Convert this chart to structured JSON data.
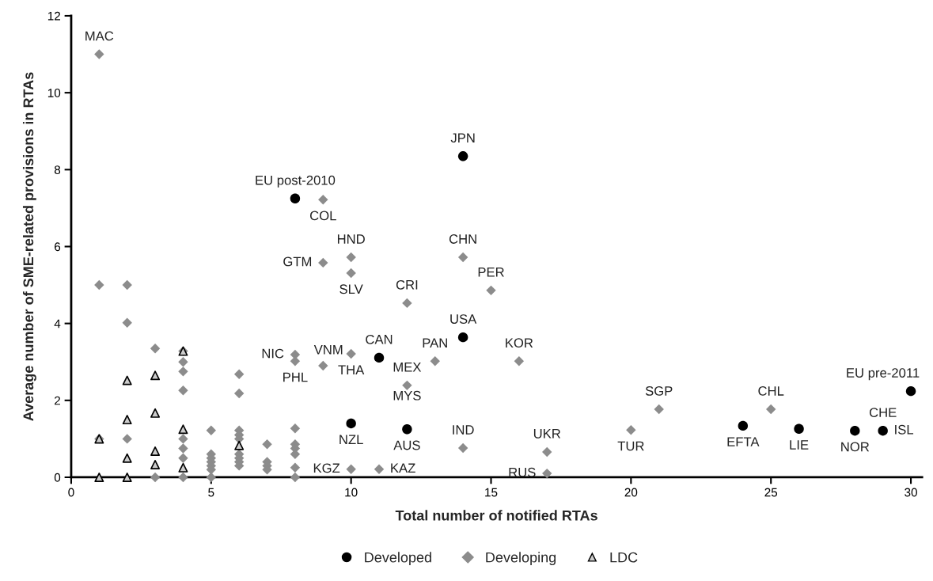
{
  "chart_data": {
    "type": "scatter",
    "xlabel": "Total number of notified RTAs",
    "ylabel": "Average number of SME-related provisions in RTAs",
    "xlim": [
      0,
      30.4
    ],
    "xticks": [
      0,
      5,
      10,
      15,
      20,
      25,
      30
    ],
    "ylim": [
      0,
      12
    ],
    "yticks": [
      0,
      2,
      4,
      6,
      8,
      10,
      12
    ],
    "grid": false,
    "legend": "bottom",
    "series": [
      {
        "name": "Developed",
        "color": "#000000",
        "marker": "circle",
        "x": [
          8,
          14,
          14,
          11,
          10,
          12,
          24,
          26,
          28,
          29,
          30
        ],
        "values": [
          7.25,
          8.35,
          3.64,
          3.11,
          1.4,
          1.25,
          1.34,
          1.26,
          1.21,
          1.21,
          2.24
        ]
      },
      {
        "name": "Developing",
        "color": "#8c8c8c",
        "marker": "diamond",
        "x": [
          1,
          9,
          9,
          10,
          10,
          14,
          15,
          12,
          10,
          8,
          8,
          9,
          13,
          16,
          12,
          14,
          17,
          17,
          10,
          11,
          21,
          20,
          25,
          1,
          1,
          2,
          2,
          2,
          3,
          3,
          4,
          4,
          4,
          4,
          4,
          4,
          4,
          4,
          5,
          5,
          5,
          5,
          5,
          5,
          5,
          6,
          6,
          6,
          6,
          6,
          6,
          6,
          6,
          6,
          7,
          7,
          7,
          7,
          8,
          8,
          8,
          8,
          8,
          8
        ],
        "values": [
          11.0,
          7.22,
          5.58,
          5.72,
          5.31,
          5.72,
          4.86,
          4.53,
          3.21,
          3.19,
          3.02,
          2.9,
          3.02,
          3.02,
          2.39,
          0.76,
          0.66,
          0.1,
          0.21,
          0.21,
          1.77,
          1.23,
          1.77,
          5.0,
          1.0,
          5.0,
          4.02,
          1.0,
          3.35,
          0,
          3.28,
          3.0,
          2.75,
          2.26,
          1.0,
          0.75,
          0.5,
          0,
          1.22,
          0.6,
          0.5,
          0.4,
          0.3,
          0.2,
          0,
          2.68,
          2.18,
          1.22,
          1.1,
          1.0,
          0.6,
          0.5,
          0.4,
          0.3,
          0.86,
          0.4,
          0.3,
          0.2,
          1.27,
          0.86,
          0.75,
          0.6,
          0.25,
          0
        ]
      },
      {
        "name": "LDC",
        "color": "#cccccc",
        "marker": "triangle",
        "x": [
          1,
          1,
          2,
          2,
          2,
          2,
          3,
          3,
          3,
          3,
          4,
          4,
          4,
          6
        ],
        "values": [
          1.0,
          0,
          2.52,
          1.5,
          0.5,
          0,
          2.65,
          1.67,
          0.68,
          0.33,
          3.28,
          1.25,
          0.25,
          0.83
        ]
      }
    ],
    "annotations": [
      {
        "text": "MAC",
        "x": 1,
        "y": 11.0
      },
      {
        "text": "EU post-2010",
        "x": 8,
        "y": 7.25
      },
      {
        "text": "COL",
        "x": 9,
        "y": 7.22
      },
      {
        "text": "JPN",
        "x": 14,
        "y": 8.35
      },
      {
        "text": "HND",
        "x": 10,
        "y": 5.72
      },
      {
        "text": "GTM",
        "x": 9,
        "y": 5.58
      },
      {
        "text": "SLV",
        "x": 10,
        "y": 5.31
      },
      {
        "text": "CHN",
        "x": 14,
        "y": 5.72
      },
      {
        "text": "PER",
        "x": 15,
        "y": 4.86
      },
      {
        "text": "CRI",
        "x": 12,
        "y": 4.53
      },
      {
        "text": "USA",
        "x": 14,
        "y": 3.64
      },
      {
        "text": "CAN",
        "x": 11,
        "y": 3.11
      },
      {
        "text": "VNM",
        "x": 9,
        "y": 2.9
      },
      {
        "text": "NIC",
        "x": 8,
        "y": 3.19
      },
      {
        "text": "PHL",
        "x": 8,
        "y": 3.02
      },
      {
        "text": "THA",
        "x": 10,
        "y": 3.21
      },
      {
        "text": "PAN",
        "x": 13,
        "y": 3.02
      },
      {
        "text": "KOR",
        "x": 16,
        "y": 3.02
      },
      {
        "text": "MEX",
        "x": 12,
        "y": 2.39
      },
      {
        "text": "MYS",
        "x": 12,
        "y": 1.25
      },
      {
        "text": "AUS",
        "x": 12,
        "y": 1.25
      },
      {
        "text": "NZL",
        "x": 10,
        "y": 1.4
      },
      {
        "text": "KGZ",
        "x": 10,
        "y": 0.21
      },
      {
        "text": "KAZ",
        "x": 11,
        "y": 0.21
      },
      {
        "text": "IND",
        "x": 14,
        "y": 0.76
      },
      {
        "text": "UKR",
        "x": 17,
        "y": 0.66
      },
      {
        "text": "RUS",
        "x": 17,
        "y": 0.1
      },
      {
        "text": "TUR",
        "x": 20,
        "y": 1.23
      },
      {
        "text": "SGP",
        "x": 21,
        "y": 1.77
      },
      {
        "text": "EFTA",
        "x": 24,
        "y": 1.34
      },
      {
        "text": "CHL",
        "x": 25,
        "y": 1.77
      },
      {
        "text": "LIE",
        "x": 26,
        "y": 1.26
      },
      {
        "text": "NOR",
        "x": 28,
        "y": 1.21
      },
      {
        "text": "CHE",
        "x": 29,
        "y": 1.21
      },
      {
        "text": "ISL",
        "x": 29,
        "y": 1.21
      },
      {
        "text": "EU pre-2011",
        "x": 30,
        "y": 2.24
      }
    ]
  }
}
